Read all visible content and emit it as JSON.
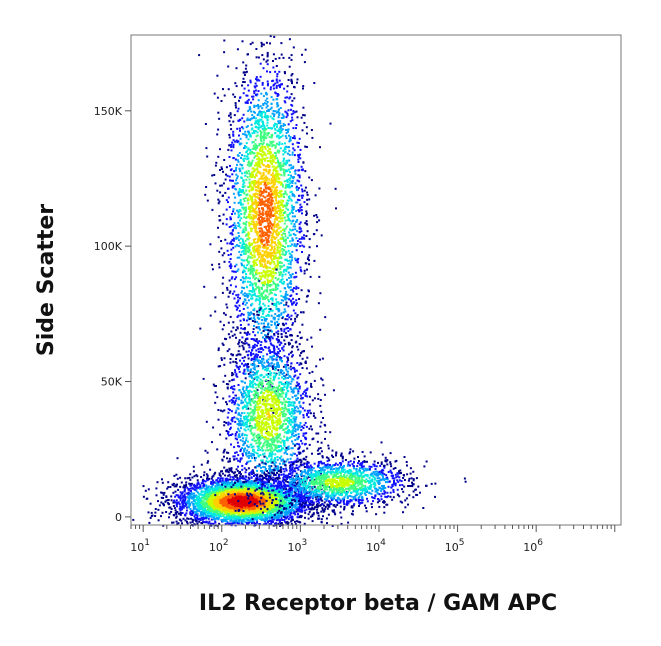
{
  "chart_data": {
    "type": "scatter",
    "title": "",
    "xlabel": "IL2 Receptor beta / GAM APC",
    "ylabel": "Side Scatter",
    "x_scale": "log",
    "xlim": [
      7,
      12000000
    ],
    "ylim": [
      -3000,
      178000
    ],
    "x_ticks": [
      {
        "value": 10,
        "base": "10",
        "exp": "1"
      },
      {
        "value": 100,
        "base": "10",
        "exp": "2"
      },
      {
        "value": 1000,
        "base": "10",
        "exp": "3"
      },
      {
        "value": 10000,
        "base": "10",
        "exp": "4"
      },
      {
        "value": 100000,
        "base": "10",
        "exp": "5"
      },
      {
        "value": 1000000,
        "base": "10",
        "exp": "6"
      }
    ],
    "y_ticks": [
      {
        "value": 0,
        "label": "0"
      },
      {
        "value": 50000,
        "label": "50K"
      },
      {
        "value": 100000,
        "label": "100K"
      },
      {
        "value": 150000,
        "label": "150K"
      }
    ],
    "density_colormap": [
      "#00008b",
      "#1010ff",
      "#00a0ff",
      "#00e8e0",
      "#40ff80",
      "#c8ff00",
      "#ffd000",
      "#ff6000",
      "#e00000"
    ],
    "populations": [
      {
        "x_center": 180,
        "x_spread_decades": 0.42,
        "y_center": 6000,
        "y_spread": 4500,
        "density": 1.0
      },
      {
        "x_center": 350,
        "x_spread_decades": 0.25,
        "y_center": 112000,
        "y_spread": 28000,
        "density": 0.75
      },
      {
        "x_center": 380,
        "x_spread_decades": 0.28,
        "y_center": 38000,
        "y_spread": 15000,
        "density": 0.45
      },
      {
        "x_center": 3000,
        "x_spread_decades": 0.45,
        "y_center": 13000,
        "y_spread": 4500,
        "density": 0.35
      }
    ]
  }
}
